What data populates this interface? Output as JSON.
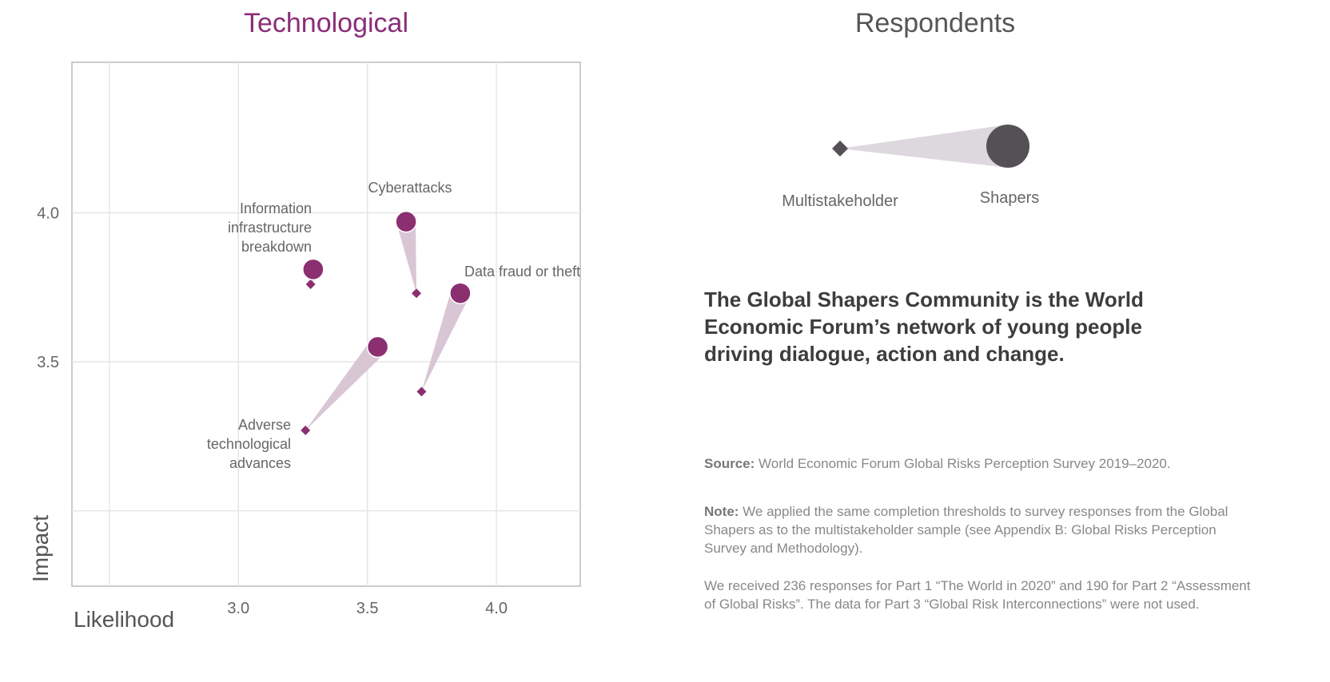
{
  "chart_data": {
    "type": "scatter",
    "title": "Technological",
    "xlabel": "Likelihood",
    "ylabel": "Impact",
    "xlim": [
      2.355,
      4.325
    ],
    "ylim": [
      2.747,
      4.505
    ],
    "xticks": [
      2.5,
      3.0,
      3.5,
      4.0
    ],
    "xtick_labels": [
      "",
      "3.0",
      "3.5",
      "4.0"
    ],
    "yticks": [
      3.0,
      3.5,
      4.0
    ],
    "ytick_labels": [
      "",
      "3.5",
      "4.0"
    ],
    "grid": true,
    "series": [
      {
        "name": "Multistakeholder",
        "marker": "diamond"
      },
      {
        "name": "Shapers",
        "marker": "circle"
      }
    ],
    "points": [
      {
        "label": "Cyberattacks",
        "multistakeholder": [
          3.69,
          3.73
        ],
        "shapers": [
          3.65,
          3.97
        ]
      },
      {
        "label": "Information infrastructure breakdown",
        "multistakeholder": [
          3.28,
          3.76
        ],
        "shapers": [
          3.29,
          3.81
        ]
      },
      {
        "label": "Data fraud or theft",
        "multistakeholder": [
          3.71,
          3.4
        ],
        "shapers": [
          3.86,
          3.73
        ]
      },
      {
        "label": "Adverse technological advances",
        "multistakeholder": [
          3.26,
          3.27
        ],
        "shapers": [
          3.54,
          3.55
        ]
      }
    ],
    "colors": {
      "marker": "#8b2f70",
      "cone": "#d9c6d5",
      "grid": "#e6e6e6"
    }
  },
  "legend": {
    "title": "Respondents",
    "multistakeholder": "Multistakeholder",
    "shapers": "Shapers",
    "colors": {
      "marker": "#555055",
      "cone": "#ddd8dd"
    }
  },
  "text": {
    "headline": "The Global Shapers Community is the World Economic Forum’s network of young people driving dialogue, action and change.",
    "source_label": "Source:",
    "source": " World Economic Forum Global Risks Perception Survey 2019–2020.",
    "note_label": "Note:",
    "note": " We applied the same completion thresholds to survey responses from the Global Shapers as to the multistakeholder sample (see Appendix B: Global Risks Perception Survey and Methodology).",
    "responses": "We received 236 responses for Part 1 “The World in 2020” and 190 for Part 2 “Assessment of Global Risks”. The data for Part 3 “Global Risk Interconnections” were not used."
  }
}
